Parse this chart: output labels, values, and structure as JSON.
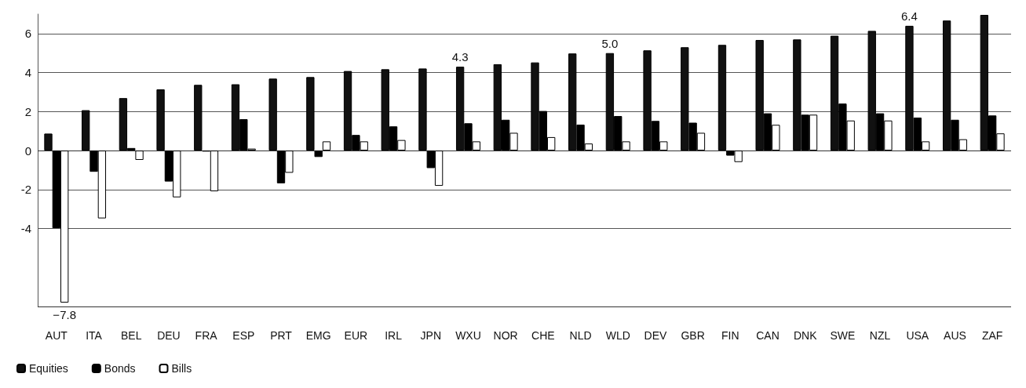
{
  "chart_data": {
    "type": "bar",
    "categories": [
      "AUT",
      "ITA",
      "BEL",
      "DEU",
      "FRA",
      "ESP",
      "PRT",
      "EMG",
      "EUR",
      "IRL",
      "JPN",
      "WXU",
      "NOR",
      "CHE",
      "NLD",
      "WLD",
      "DEV",
      "GBR",
      "FIN",
      "CAN",
      "DNK",
      "SWE",
      "NZL",
      "USA",
      "AUS",
      "ZAF"
    ],
    "series": [
      {
        "name": "Equities",
        "color": "#111111",
        "values": [
          0.87,
          2.07,
          2.69,
          3.14,
          3.37,
          3.4,
          3.69,
          3.77,
          4.08,
          4.17,
          4.21,
          4.3,
          4.43,
          4.52,
          4.98,
          5.0,
          5.14,
          5.3,
          5.42,
          5.67,
          5.7,
          5.89,
          6.14,
          6.4,
          6.67,
          6.96
        ],
        "value_labels": [
          null,
          null,
          null,
          null,
          null,
          null,
          null,
          null,
          null,
          null,
          null,
          "4.3",
          null,
          null,
          null,
          "5.0",
          null,
          null,
          null,
          null,
          null,
          null,
          null,
          "6.4",
          null,
          null
        ]
      },
      {
        "name": "Bonds",
        "color": "#000000",
        "values": [
          -3.98,
          -1.09,
          0.13,
          -1.59,
          -0.05,
          1.61,
          -1.68,
          -0.33,
          0.8,
          1.24,
          -0.9,
          1.4,
          1.58,
          2.03,
          1.33,
          1.77,
          1.52,
          1.43,
          -0.26,
          1.91,
          1.84,
          2.41,
          1.91,
          1.69,
          1.58,
          1.8
        ]
      },
      {
        "name": "Bills",
        "color": "#ffffff",
        "values": [
          -7.8,
          -3.48,
          -0.48,
          -2.4,
          -2.09,
          0.1,
          -1.14,
          0.47,
          0.47,
          0.54,
          -1.81,
          0.47,
          0.91,
          0.69,
          0.36,
          0.47,
          0.47,
          0.91,
          -0.59,
          1.32,
          1.84,
          1.54,
          1.54,
          0.47,
          0.58,
          0.88
        ],
        "value_labels": [
          "−7.8",
          null,
          null,
          null,
          null,
          null,
          null,
          null,
          null,
          null,
          null,
          null,
          null,
          null,
          null,
          null,
          null,
          null,
          null,
          null,
          null,
          null,
          null,
          null,
          null,
          null
        ]
      }
    ],
    "ylim": [
      -8,
      7
    ],
    "yticks": [
      -4,
      -2,
      0,
      2,
      4,
      6
    ],
    "grid": "y",
    "legend": "bottom left"
  }
}
